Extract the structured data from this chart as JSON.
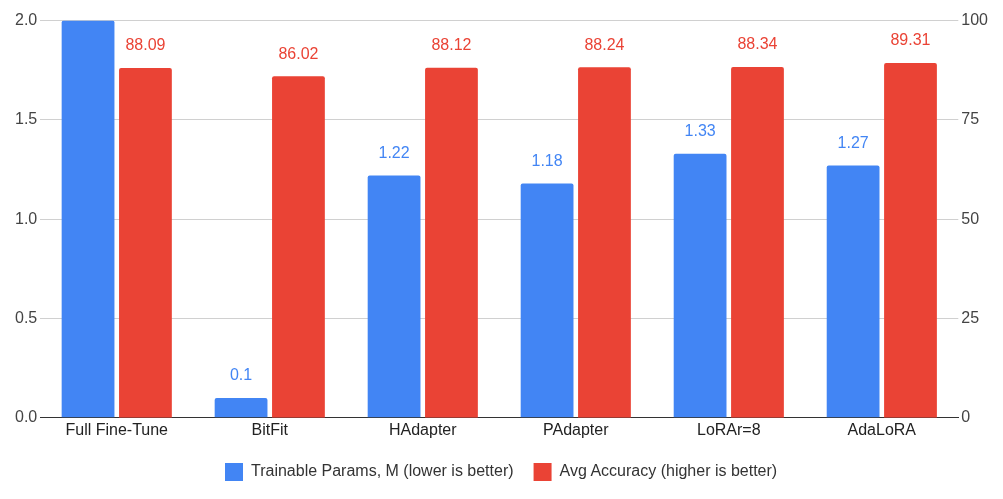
{
  "chart_data": {
    "type": "bar",
    "categories": [
      "Full Fine-Tune",
      "BitFit",
      "HAdapter",
      "PAdapter",
      "LoRAr=8",
      "AdaLoRA"
    ],
    "series": [
      {
        "name": "Trainable Params, M (lower is better)",
        "color": "#4285f4",
        "values": [
          2.0,
          0.1,
          1.22,
          1.18,
          1.33,
          1.27
        ],
        "value_labels": [
          null,
          "0.1",
          "1.22",
          "1.18",
          "1.33",
          "1.27"
        ]
      },
      {
        "name": "Avg Accuracy (higher is better)",
        "color": "#ea4335",
        "axis": "y2",
        "values": [
          88.09,
          86.02,
          88.12,
          88.24,
          88.34,
          89.31
        ],
        "value_labels": [
          "88.09",
          "86.02",
          "88.12",
          "88.24",
          "88.34",
          "89.31"
        ]
      }
    ],
    "ylim": [
      0,
      2
    ],
    "yticks": [
      {
        "value": 0,
        "label": "0.0"
      },
      0.5,
      {
        "value": 1,
        "label": "1.0"
      },
      1.5,
      {
        "value": 2,
        "label": "2.0"
      }
    ],
    "y2lim": [
      0,
      100
    ],
    "y2ticks": [
      0,
      25,
      50,
      75,
      100
    ],
    "grid": "y",
    "legend": "bottom"
  }
}
